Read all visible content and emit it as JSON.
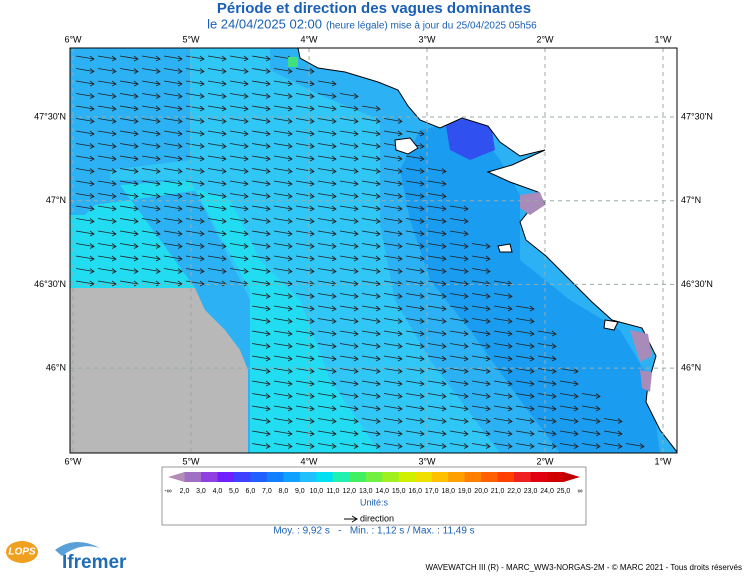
{
  "header": {
    "title": "Période et direction des vagues dominantes",
    "date": "le 24/04/2025 02:00",
    "note": "(heure légale) mise à jour du 25/04/2025 05h56"
  },
  "map": {
    "lon_labels": [
      "6°W",
      "5°W",
      "4°W",
      "3°W",
      "2°W",
      "1°W"
    ],
    "lat_labels": [
      "47°30'N",
      "47°N",
      "46°30'N",
      "46°N"
    ]
  },
  "legend": {
    "labels": [
      "-∞",
      "2,0",
      "3,0",
      "4,0",
      "5,0",
      "6,0",
      "7,0",
      "8,0",
      "9,0",
      "10,0",
      "11,0",
      "12,0",
      "13,0",
      "14,0",
      "15,0",
      "16,0",
      "17,0",
      "18,0",
      "19,0",
      "20,0",
      "21,0",
      "22,0",
      "23,0",
      "24,0",
      "25,0",
      "∞"
    ],
    "colors": [
      "#b48cb8",
      "#a070c4",
      "#9040e0",
      "#7020ff",
      "#4040ff",
      "#2060ff",
      "#1080ff",
      "#10a0ff",
      "#20c0ff",
      "#00e0f0",
      "#20f0b0",
      "#40f060",
      "#70f040",
      "#a0f020",
      "#d0f000",
      "#f0e000",
      "#ffc000",
      "#ffa000",
      "#ff8000",
      "#ff6000",
      "#ff4000",
      "#f02020",
      "#e00010",
      "#d00000",
      "#c00000"
    ],
    "unit": "Unité:s",
    "direction": "direction"
  },
  "stats": "Moy. : 9,92 s   -   Min. : 1,12 s / Max. : 11,49 s",
  "footer": {
    "logo1": "LOPS",
    "logo2": "Ifremer",
    "credits": "WAVEWATCH III (R) - MARC_WW3-NORGAS-2M - © MARC 2021 - Tous droits réservés"
  }
}
